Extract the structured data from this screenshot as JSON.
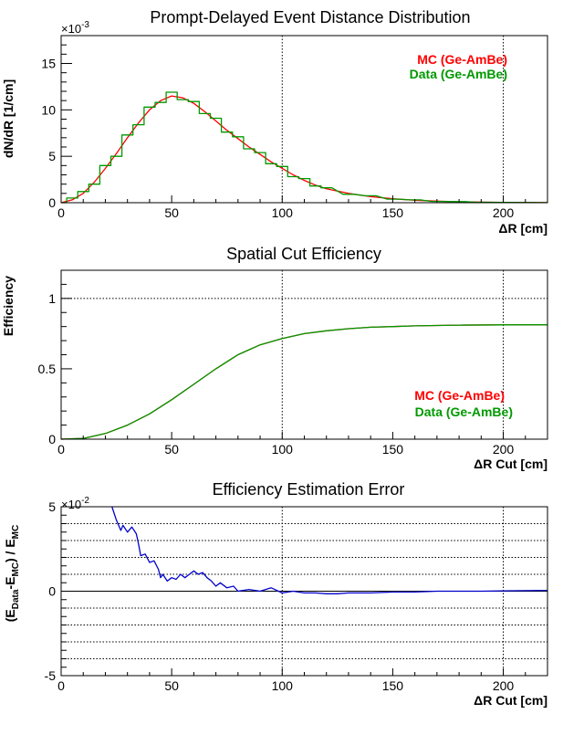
{
  "chart_data": [
    {
      "type": "line",
      "title": "Prompt-Delayed Event Distance Distribution",
      "xlabel": "ΔR [cm]",
      "ylabel": "dN/dR [1/cm]",
      "y_exponent": "×10",
      "y_exponent_power": "-3",
      "xlim": [
        0,
        220
      ],
      "ylim": [
        0,
        18
      ],
      "x_ticks": [
        0,
        50,
        100,
        150,
        200
      ],
      "y_ticks": [
        0,
        5,
        10,
        15
      ],
      "grid": "dotted vertical lines at 100 and 200",
      "legend_position": "top-right",
      "series": [
        {
          "name": "MC (Ge-AmBe)",
          "color": "#ff0000",
          "style": "line",
          "x": [
            0,
            5,
            10,
            15,
            20,
            25,
            30,
            35,
            40,
            45,
            50,
            55,
            60,
            65,
            70,
            75,
            80,
            85,
            90,
            95,
            100,
            105,
            110,
            115,
            120,
            130,
            140,
            150,
            160,
            170,
            180,
            190,
            200,
            210,
            220
          ],
          "y": [
            0.0,
            0.3,
            1.0,
            2.2,
            3.7,
            5.3,
            7.0,
            8.6,
            10.0,
            11.0,
            11.5,
            11.3,
            10.7,
            9.8,
            8.8,
            7.8,
            6.9,
            6.0,
            5.2,
            4.4,
            3.7,
            3.0,
            2.4,
            1.9,
            1.5,
            1.0,
            0.65,
            0.42,
            0.27,
            0.17,
            0.1,
            0.06,
            0.03,
            0.02,
            0.01
          ]
        },
        {
          "name": "Data (Ge-AmBe)",
          "color": "#009900",
          "style": "step",
          "x": [
            0,
            5,
            10,
            15,
            20,
            25,
            30,
            35,
            40,
            45,
            50,
            55,
            60,
            65,
            70,
            75,
            80,
            85,
            90,
            95,
            100,
            105,
            110,
            115,
            120,
            130,
            140,
            150,
            160,
            170,
            180,
            190,
            200,
            210,
            220
          ],
          "y": [
            0.0,
            0.5,
            1.2,
            2.0,
            4.0,
            5.0,
            7.3,
            8.4,
            10.3,
            10.8,
            11.9,
            11.1,
            10.9,
            9.6,
            9.1,
            7.6,
            7.1,
            5.8,
            5.4,
            4.2,
            3.9,
            2.8,
            2.6,
            1.8,
            1.6,
            0.9,
            0.75,
            0.38,
            0.3,
            0.14,
            0.12,
            0.05,
            0.04,
            0.02,
            0.01
          ]
        }
      ]
    },
    {
      "type": "line",
      "title": "Spatial Cut Efficiency",
      "xlabel": "ΔR Cut [cm]",
      "ylabel": "Efficiency",
      "xlim": [
        0,
        220
      ],
      "ylim": [
        0,
        1.2
      ],
      "x_ticks": [
        0,
        50,
        100,
        150,
        200
      ],
      "y_ticks": [
        0,
        0.5,
        1
      ],
      "grid": "dotted vertical lines at 100 and 200, dotted horizontal line at 1",
      "legend_position": "bottom-right",
      "series": [
        {
          "name": "MC (Ge-AmBe)",
          "color": "#ff0000",
          "x": [
            0,
            10,
            20,
            30,
            40,
            50,
            60,
            70,
            80,
            90,
            100,
            110,
            120,
            130,
            140,
            150,
            160,
            180,
            200,
            220
          ],
          "y": [
            0,
            0.005,
            0.04,
            0.1,
            0.18,
            0.28,
            0.39,
            0.5,
            0.6,
            0.67,
            0.715,
            0.75,
            0.77,
            0.785,
            0.795,
            0.8,
            0.805,
            0.81,
            0.812,
            0.813
          ]
        },
        {
          "name": "Data (Ge-AmBe)",
          "color": "#009900",
          "x": [
            0,
            10,
            20,
            30,
            40,
            50,
            60,
            70,
            80,
            90,
            100,
            110,
            120,
            130,
            140,
            150,
            160,
            180,
            200,
            220
          ],
          "y": [
            0,
            0.005,
            0.04,
            0.1,
            0.18,
            0.28,
            0.39,
            0.5,
            0.6,
            0.67,
            0.715,
            0.75,
            0.77,
            0.785,
            0.795,
            0.8,
            0.805,
            0.81,
            0.812,
            0.813
          ]
        }
      ]
    },
    {
      "type": "line",
      "title": "Efficiency Estimation Error",
      "xlabel": "ΔR Cut [cm]",
      "ylabel": "(E_Data-E_MC) / E_MC",
      "ylabel_parts": {
        "open": "(E",
        "sub1": "Data",
        "mid": "-E",
        "sub2": "MC",
        "close": ") / E",
        "sub3": "MC"
      },
      "y_exponent": "×10",
      "y_exponent_power": "-2",
      "xlim": [
        0,
        220
      ],
      "ylim": [
        -5,
        5
      ],
      "x_ticks": [
        0,
        50,
        100,
        150,
        200
      ],
      "y_ticks": [
        -5,
        0,
        5
      ],
      "grid": "dotted horizontal lines at every 1 unit, dotted vertical lines at 100 and 200",
      "series": [
        {
          "name": "",
          "color": "#0000cc",
          "x": [
            23,
            25,
            27,
            28,
            30,
            32,
            34,
            35,
            36,
            38,
            40,
            42,
            44,
            45,
            46,
            48,
            50,
            52,
            54,
            56,
            58,
            60,
            62,
            64,
            66,
            68,
            70,
            72,
            75,
            78,
            80,
            85,
            90,
            95,
            100,
            105,
            110,
            115,
            120,
            125,
            130,
            140,
            150,
            160,
            170,
            180,
            190,
            200,
            210,
            220
          ],
          "y": [
            5.0,
            4.2,
            3.6,
            3.9,
            3.5,
            3.8,
            3.4,
            2.8,
            2.1,
            2.2,
            1.7,
            1.8,
            1.3,
            0.8,
            1.0,
            0.6,
            0.8,
            0.7,
            1.0,
            0.8,
            1.0,
            1.2,
            1.0,
            1.1,
            0.8,
            0.6,
            0.3,
            0.5,
            0.2,
            0.3,
            0.0,
            0.1,
            0.0,
            0.2,
            -0.1,
            0.0,
            -0.1,
            -0.1,
            -0.15,
            -0.15,
            -0.1,
            -0.1,
            -0.05,
            -0.05,
            0.0,
            0.0,
            0.0,
            0.02,
            0.03,
            0.05
          ]
        }
      ]
    }
  ]
}
